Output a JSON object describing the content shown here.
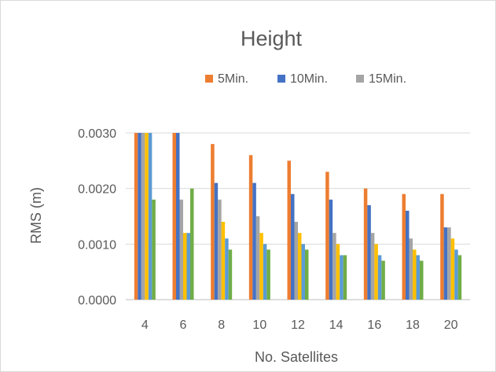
{
  "chart_data": {
    "type": "bar",
    "title": "Height",
    "xlabel": "No. Satellites",
    "ylabel": "RMS (m)",
    "ylim": [
      0,
      0.003
    ],
    "yticks": [
      "0.0000",
      "0.0010",
      "0.0020",
      "0.0030"
    ],
    "ytick_values": [
      0,
      0.001,
      0.002,
      0.003
    ],
    "grid": true,
    "legend_position": "top",
    "categories": [
      "4",
      "6",
      "8",
      "10",
      "12",
      "14",
      "16",
      "18",
      "20"
    ],
    "series": [
      {
        "name": "5Min.",
        "color": "#ed7d31",
        "values": [
          0.003,
          0.003,
          0.0028,
          0.0026,
          0.0025,
          0.0023,
          0.002,
          0.0019,
          0.0019
        ]
      },
      {
        "name": "10Min.",
        "color": "#4472c4",
        "values": [
          0.003,
          0.003,
          0.0021,
          0.0021,
          0.0019,
          0.0018,
          0.0017,
          0.0016,
          0.0013
        ]
      },
      {
        "name": "15Min.",
        "color": "#a5a5a5",
        "values": [
          0.003,
          0.0018,
          0.0018,
          0.0015,
          0.0014,
          0.0012,
          0.0012,
          0.0011,
          0.0013
        ]
      },
      {
        "name": "",
        "color": "#ffc000",
        "values": [
          0.003,
          0.0012,
          0.0014,
          0.0012,
          0.0012,
          0.001,
          0.001,
          0.0009,
          0.0011
        ]
      },
      {
        "name": "",
        "color": "#5b9bd5",
        "values": [
          0.003,
          0.0012,
          0.0011,
          0.001,
          0.001,
          0.0008,
          0.0008,
          0.0008,
          0.0009
        ]
      },
      {
        "name": "",
        "color": "#70ad47",
        "values": [
          0.0018,
          0.002,
          0.0009,
          0.0009,
          0.0009,
          0.0008,
          0.0007,
          0.0007,
          0.0008
        ]
      }
    ]
  }
}
